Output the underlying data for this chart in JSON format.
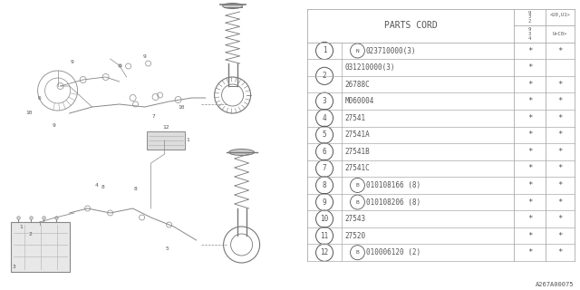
{
  "diagram_label": "A267A00075",
  "parts_cord_header": "PARTS CORD",
  "col1_num": "9\n3\n2",
  "col2_num": "9\n3\n4",
  "col_label_top": "<U0,U1>",
  "col_label_bot": "U<C0>",
  "rows": [
    {
      "num": "1",
      "prefix": "N",
      "code": "023710000(3)",
      "c1": "*",
      "c2": "*"
    },
    {
      "num": "2",
      "prefix": "",
      "code": "031210000(3)",
      "c1": "*",
      "c2": ""
    },
    {
      "num": "2",
      "prefix": "",
      "code": "26788C",
      "c1": "*",
      "c2": "*"
    },
    {
      "num": "3",
      "prefix": "",
      "code": "M060004",
      "c1": "*",
      "c2": "*"
    },
    {
      "num": "4",
      "prefix": "",
      "code": "27541",
      "c1": "*",
      "c2": "*"
    },
    {
      "num": "5",
      "prefix": "",
      "code": "27541A",
      "c1": "*",
      "c2": "*"
    },
    {
      "num": "6",
      "prefix": "",
      "code": "27541B",
      "c1": "*",
      "c2": "*"
    },
    {
      "num": "7",
      "prefix": "",
      "code": "27541C",
      "c1": "*",
      "c2": "*"
    },
    {
      "num": "8",
      "prefix": "B",
      "code": "010108166 (8)",
      "c1": "*",
      "c2": "*"
    },
    {
      "num": "9",
      "prefix": "B",
      "code": "010108206 (8)",
      "c1": "*",
      "c2": "*"
    },
    {
      "num": "10",
      "prefix": "",
      "code": "27543",
      "c1": "*",
      "c2": "*"
    },
    {
      "num": "11",
      "prefix": "",
      "code": "27520",
      "c1": "*",
      "c2": "*"
    },
    {
      "num": "12",
      "prefix": "B",
      "code": "010006120 (2)",
      "c1": "*",
      "c2": "*"
    }
  ],
  "bg_color": "#ffffff",
  "line_color": "#aaaaaa",
  "text_color": "#555555",
  "dark_color": "#444444"
}
